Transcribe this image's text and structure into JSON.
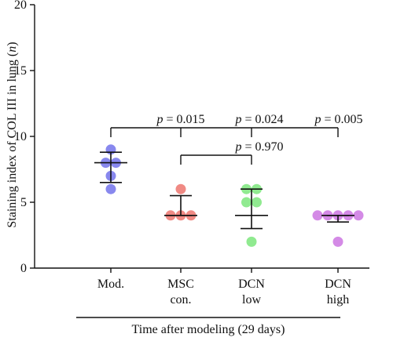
{
  "chart_data": {
    "type": "scatter",
    "ylabel": "Staining index of COL III in lung (n)",
    "ylabel_parts": [
      "Staining index of COL III in lung (",
      "n",
      ")"
    ],
    "xlabel": "Time after modeling (29 days)",
    "ylim": [
      0,
      20
    ],
    "yticks": [
      "0",
      "5",
      "10",
      "15",
      "20"
    ],
    "grid": false,
    "groups": [
      {
        "label_lines": [
          "Mod."
        ],
        "color": "#8888ee",
        "points": [
          9,
          8,
          8,
          7,
          6
        ],
        "mean": 8.0,
        "err_low": 6.5,
        "err_high": 8.8
      },
      {
        "label_lines": [
          "MSC",
          "con."
        ],
        "color": "#f08a84",
        "points": [
          6,
          4,
          4,
          4
        ],
        "mean": 4.0,
        "err_low": 4.0,
        "err_high": 5.5
      },
      {
        "label_lines": [
          "DCN",
          "low"
        ],
        "color": "#90ea90",
        "points": [
          6,
          6,
          5,
          5,
          2
        ],
        "mean": 4.0,
        "err_low": 3.0,
        "err_high": 6.0
      },
      {
        "label_lines": [
          "DCN",
          "high"
        ],
        "color": "#d48ae6",
        "points": [
          4,
          4,
          4,
          4,
          4,
          2
        ],
        "mean": 4.0,
        "err_low": 3.5,
        "err_high": 4.0
      }
    ],
    "comparisons": [
      {
        "p_prefix": "p",
        "p_text": " = 0.015"
      },
      {
        "p_prefix": "p",
        "p_text": " = 0.024"
      },
      {
        "p_prefix": "p",
        "p_text": " = 0.005"
      },
      {
        "p_prefix": "p",
        "p_text": " = 0.970"
      }
    ]
  }
}
